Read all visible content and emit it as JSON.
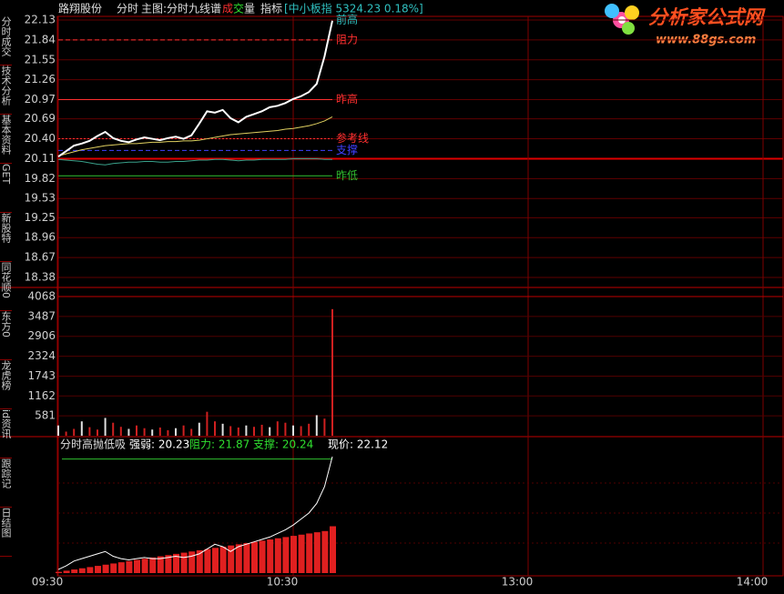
{
  "header": {
    "stock": "路翔股份",
    "tabs": [
      "分时",
      "主图:分时九线谱"
    ],
    "volume_chars": [
      "成",
      "交",
      "量"
    ],
    "indicator": "指标",
    "index_quote": "[中小板指 5324.23 0.18%]"
  },
  "logo": {
    "title": "分析家公式网",
    "url": "www.88gs.com"
  },
  "sidebar": [
    "分时成交",
    "技术分析",
    "基本资料",
    "GET",
    "新股特",
    "同花顺0",
    "东方0",
    "龙虎榜",
    "id资讯",
    "跟踪记",
    "日结图"
  ],
  "chart_data": [
    {
      "type": "line",
      "x": [
        "09:30",
        "09:32",
        "09:34",
        "09:36",
        "09:38",
        "09:40",
        "09:42",
        "09:44",
        "09:46",
        "09:48",
        "09:50",
        "09:52",
        "09:54",
        "09:56",
        "09:58",
        "10:00",
        "10:02",
        "10:04",
        "10:06",
        "10:08",
        "10:10",
        "10:12",
        "10:14",
        "10:16",
        "10:18",
        "10:20",
        "10:22",
        "10:24",
        "10:26",
        "10:28",
        "10:30",
        "10:32",
        "10:34",
        "10:36",
        "10:38",
        "10:40"
      ],
      "series": [
        {
          "color": "#ffffff",
          "values": [
            20.14,
            20.22,
            20.3,
            20.33,
            20.37,
            20.44,
            20.5,
            20.41,
            20.37,
            20.35,
            20.39,
            20.42,
            20.4,
            20.38,
            20.41,
            20.43,
            20.4,
            20.45,
            20.62,
            20.8,
            20.78,
            20.82,
            20.7,
            20.64,
            20.72,
            20.76,
            20.8,
            20.86,
            20.88,
            20.92,
            20.98,
            21.02,
            21.08,
            21.2,
            21.6,
            22.12
          ]
        },
        {
          "color": "#e0d060",
          "values": [
            20.15,
            20.18,
            20.21,
            20.24,
            20.26,
            20.28,
            20.3,
            20.31,
            20.32,
            20.33,
            20.33,
            20.34,
            20.35,
            20.35,
            20.36,
            20.36,
            20.37,
            20.37,
            20.38,
            20.4,
            20.42,
            20.44,
            20.46,
            20.47,
            20.48,
            20.49,
            20.5,
            20.51,
            20.52,
            20.54,
            20.55,
            20.57,
            20.59,
            20.62,
            20.66,
            20.72
          ]
        },
        {
          "color": "#3aa08a",
          "values": [
            20.1,
            20.09,
            20.08,
            20.07,
            20.05,
            20.03,
            20.02,
            20.04,
            20.05,
            20.06,
            20.06,
            20.07,
            20.07,
            20.06,
            20.06,
            20.07,
            20.07,
            20.08,
            20.09,
            20.09,
            20.1,
            20.1,
            20.09,
            20.08,
            20.09,
            20.09,
            20.1,
            20.1,
            20.1,
            20.1,
            20.11,
            20.11,
            20.11,
            20.11,
            20.1,
            20.1
          ]
        }
      ],
      "levels": [
        {
          "label": "前高",
          "value": 22.13,
          "color": "#30c0c0",
          "style": "none"
        },
        {
          "label": "阻力",
          "value": 21.84,
          "color": "#ff3030",
          "style": "dashed"
        },
        {
          "label": "昨高",
          "value": 20.97,
          "color": "#ff3030",
          "style": "solid"
        },
        {
          "label": "参考线",
          "value": 20.4,
          "color": "#ff3030",
          "style": "dotted"
        },
        {
          "label": "支撑",
          "value": 20.23,
          "color": "#4040ff",
          "style": "dashed"
        },
        {
          "label": "昨低",
          "value": 19.86,
          "color": "#30c030",
          "style": "solid"
        }
      ],
      "ylim": [
        18.38,
        22.13
      ],
      "yticks": [
        22.13,
        21.84,
        21.55,
        21.26,
        20.97,
        20.69,
        "20.40",
        20.11,
        19.82,
        19.53,
        19.25,
        18.96,
        18.67,
        18.38
      ],
      "xticks": [
        "09:30",
        "10:30",
        "13:00",
        "14:00"
      ]
    },
    {
      "type": "bar",
      "color": "#d02020",
      "values": [
        300,
        120,
        200,
        420,
        250,
        180,
        520,
        380,
        260,
        200,
        300,
        220,
        180,
        240,
        160,
        220,
        300,
        200,
        380,
        700,
        420,
        350,
        280,
        240,
        300,
        260,
        320,
        250,
        420,
        380,
        300,
        280,
        350,
        600,
        500,
        3700
      ],
      "ylim": [
        0,
        4068
      ],
      "yticks": [
        4068,
        3487,
        2906,
        2324,
        1743,
        1162,
        581
      ]
    },
    {
      "type": "indicator",
      "title": "分时高抛低吸",
      "readouts": [
        {
          "text": "强弱: 20.23",
          "color": "#ffffff"
        },
        {
          "text": "阻力: 21.87",
          "color": "#30e030"
        },
        {
          "text": "支撑: 20.24",
          "color": "#30e030"
        },
        {
          "text": "现价: 22.12",
          "color": "#ffffff"
        }
      ],
      "line": {
        "color": "#ffffff",
        "values": [
          3,
          6,
          10,
          12,
          14,
          16,
          18,
          14,
          12,
          11,
          12,
          13,
          12,
          12,
          13,
          14,
          13,
          14,
          16,
          20,
          24,
          22,
          18,
          22,
          24,
          26,
          28,
          30,
          33,
          36,
          40,
          45,
          50,
          58,
          72,
          97
        ]
      },
      "bars": {
        "color": "#e02020",
        "values": [
          1,
          2,
          3,
          4,
          5,
          6,
          7,
          8,
          9,
          10,
          11,
          12,
          13,
          14,
          15,
          16,
          17,
          18,
          19,
          20,
          21,
          22,
          23,
          24,
          25,
          26,
          27,
          28,
          29,
          30,
          31,
          32,
          33,
          34,
          35,
          39
        ]
      },
      "level": {
        "color": "#30c030",
        "value": 95
      },
      "ylim": [
        0,
        100
      ]
    }
  ]
}
